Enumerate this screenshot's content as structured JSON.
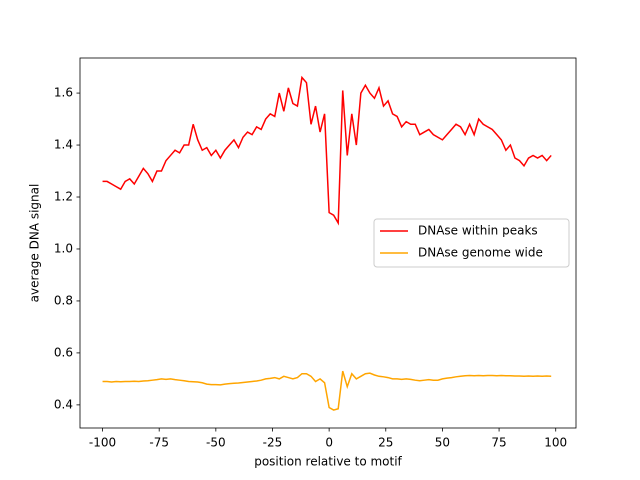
{
  "chart_data": {
    "type": "line",
    "xlabel": "position relative to motif",
    "ylabel": "average DNA signal",
    "x": [
      -100,
      -98,
      -96,
      -94,
      -92,
      -90,
      -88,
      -86,
      -84,
      -82,
      -80,
      -78,
      -76,
      -74,
      -72,
      -70,
      -68,
      -66,
      -64,
      -62,
      -60,
      -58,
      -56,
      -54,
      -52,
      -50,
      -48,
      -46,
      -44,
      -42,
      -40,
      -38,
      -36,
      -34,
      -32,
      -30,
      -28,
      -26,
      -24,
      -22,
      -20,
      -18,
      -16,
      -14,
      -12,
      -10,
      -8,
      -6,
      -4,
      -2,
      0,
      2,
      4,
      6,
      8,
      10,
      12,
      14,
      16,
      18,
      20,
      22,
      24,
      26,
      28,
      30,
      32,
      34,
      36,
      38,
      40,
      42,
      44,
      46,
      48,
      50,
      52,
      54,
      56,
      58,
      60,
      62,
      64,
      66,
      68,
      70,
      72,
      74,
      76,
      78,
      80,
      82,
      84,
      86,
      88,
      90,
      92,
      94,
      96,
      98
    ],
    "series": [
      {
        "name": "DNAse within peaks",
        "color": "#ff0000",
        "values": [
          1.26,
          1.26,
          1.25,
          1.24,
          1.23,
          1.26,
          1.27,
          1.25,
          1.28,
          1.31,
          1.29,
          1.26,
          1.3,
          1.3,
          1.34,
          1.36,
          1.38,
          1.37,
          1.4,
          1.4,
          1.48,
          1.42,
          1.38,
          1.39,
          1.36,
          1.38,
          1.35,
          1.38,
          1.4,
          1.42,
          1.39,
          1.43,
          1.45,
          1.44,
          1.47,
          1.46,
          1.5,
          1.52,
          1.51,
          1.6,
          1.53,
          1.62,
          1.56,
          1.55,
          1.66,
          1.64,
          1.48,
          1.55,
          1.45,
          1.52,
          1.14,
          1.13,
          1.1,
          1.61,
          1.36,
          1.52,
          1.4,
          1.6,
          1.63,
          1.6,
          1.58,
          1.62,
          1.55,
          1.57,
          1.52,
          1.51,
          1.47,
          1.49,
          1.48,
          1.48,
          1.44,
          1.45,
          1.46,
          1.44,
          1.43,
          1.42,
          1.44,
          1.46,
          1.48,
          1.47,
          1.44,
          1.48,
          1.44,
          1.5,
          1.48,
          1.47,
          1.46,
          1.44,
          1.42,
          1.38,
          1.4,
          1.35,
          1.34,
          1.32,
          1.35,
          1.36,
          1.35,
          1.36,
          1.34,
          1.36
        ]
      },
      {
        "name": "DNAse genome wide",
        "color": "#ffa500",
        "values": [
          0.49,
          0.49,
          0.488,
          0.49,
          0.489,
          0.49,
          0.49,
          0.491,
          0.49,
          0.492,
          0.493,
          0.495,
          0.497,
          0.5,
          0.498,
          0.5,
          0.497,
          0.495,
          0.493,
          0.49,
          0.489,
          0.488,
          0.485,
          0.48,
          0.478,
          0.478,
          0.477,
          0.48,
          0.482,
          0.483,
          0.484,
          0.486,
          0.488,
          0.49,
          0.492,
          0.495,
          0.5,
          0.502,
          0.505,
          0.5,
          0.51,
          0.505,
          0.5,
          0.505,
          0.52,
          0.52,
          0.51,
          0.49,
          0.5,
          0.485,
          0.39,
          0.38,
          0.385,
          0.53,
          0.47,
          0.52,
          0.5,
          0.51,
          0.52,
          0.522,
          0.515,
          0.51,
          0.508,
          0.505,
          0.5,
          0.5,
          0.498,
          0.5,
          0.498,
          0.495,
          0.493,
          0.495,
          0.497,
          0.495,
          0.495,
          0.5,
          0.503,
          0.505,
          0.508,
          0.51,
          0.512,
          0.513,
          0.512,
          0.513,
          0.512,
          0.513,
          0.513,
          0.512,
          0.513,
          0.512,
          0.512,
          0.511,
          0.511,
          0.51,
          0.511,
          0.51,
          0.511,
          0.51,
          0.511,
          0.51
        ]
      }
    ],
    "xlim": [
      -109.95,
      108.95
    ],
    "ylim": [
      0.311,
      1.735
    ],
    "xticks": [
      -100,
      -75,
      -50,
      -25,
      0,
      25,
      50,
      75,
      100
    ],
    "yticks": [
      0.4,
      0.6,
      0.8,
      {
        "value": 1,
        "label": "1.0"
      },
      1.2,
      1.4,
      1.6
    ],
    "legend": "center right"
  }
}
